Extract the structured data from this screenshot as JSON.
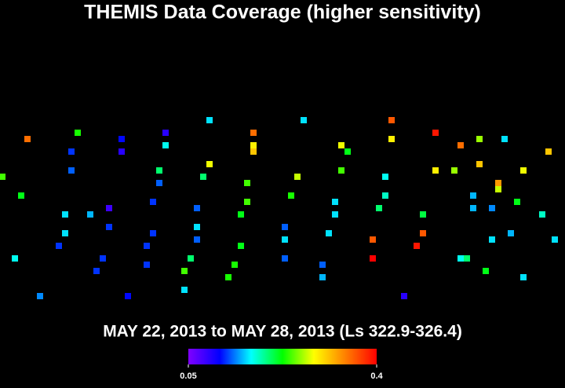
{
  "chart_data": {
    "type": "scatter",
    "title": "THEMIS Data Coverage (higher sensitivity)",
    "subtitle": "MAY 22, 2013 to MAY 28, 2013 (Ls 322.9-326.4)",
    "xlim": [
      0,
      720
    ],
    "ylim": [
      494,
      0
    ],
    "x": [
      267,
      387,
      499,
      555,
      211,
      99,
      35,
      155,
      323,
      499,
      611,
      643,
      323,
      323,
      211,
      435,
      443,
      587,
      699,
      91,
      155,
      267,
      611,
      91,
      203,
      435,
      555,
      579,
      667,
      3,
      259,
      379,
      491,
      203,
      315,
      635,
      635,
      27,
      371,
      491,
      603,
      195,
      315,
      427,
      659,
      139,
      251,
      483,
      603,
      627,
      83,
      115,
      307,
      427,
      539,
      691,
      251,
      363,
      139,
      83,
      195,
      419,
      539,
      651,
      251,
      363,
      475,
      627,
      707,
      75,
      187,
      307,
      531,
      19,
      131,
      243,
      363,
      475,
      587,
      595,
      187,
      299,
      411,
      123,
      235,
      619,
      291,
      411,
      667,
      235,
      51,
      163,
      515
    ],
    "y": [
      153,
      153,
      153,
      169,
      169,
      169,
      177,
      177,
      169,
      177,
      177,
      177,
      185,
      193,
      185,
      185,
      193,
      185,
      193,
      193,
      193,
      209,
      209,
      217,
      217,
      217,
      217,
      217,
      217,
      225,
      225,
      225,
      225,
      233,
      233,
      233,
      241,
      249,
      249,
      249,
      249,
      257,
      257,
      257,
      257,
      265,
      265,
      265,
      265,
      265,
      273,
      273,
      273,
      273,
      273,
      273,
      289,
      289,
      289,
      297,
      297,
      297,
      297,
      297,
      305,
      305,
      305,
      305,
      305,
      313,
      313,
      313,
      313,
      329,
      329,
      329,
      329,
      329,
      329,
      329,
      337,
      337,
      337,
      345,
      345,
      345,
      353,
      353,
      353,
      369,
      377,
      377,
      377
    ],
    "values": [
      0.16,
      0.16,
      0.36,
      0.39,
      0.09,
      0.23,
      0.35,
      0.11,
      0.35,
      0.29,
      0.26,
      0.16,
      0.29,
      0.31,
      0.17,
      0.28,
      0.22,
      0.35,
      0.31,
      0.12,
      0.09,
      0.28,
      0.31,
      0.13,
      0.2,
      0.24,
      0.29,
      0.26,
      0.28,
      0.24,
      0.2,
      0.27,
      0.17,
      0.13,
      0.24,
      0.33,
      0.27,
      0.22,
      0.23,
      0.18,
      0.15,
      0.12,
      0.24,
      0.16,
      0.22,
      0.08,
      0.13,
      0.2,
      0.15,
      0.14,
      0.16,
      0.15,
      0.22,
      0.16,
      0.21,
      0.18,
      0.16,
      0.13,
      0.12,
      0.16,
      0.12,
      0.16,
      0.36,
      0.15,
      0.13,
      0.16,
      0.36,
      0.16,
      0.16,
      0.12,
      0.12,
      0.22,
      0.39,
      0.17,
      0.12,
      0.2,
      0.13,
      0.4,
      0.17,
      0.2,
      0.12,
      0.23,
      0.13,
      0.12,
      0.24,
      0.22,
      0.23,
      0.15,
      0.16,
      0.16,
      0.14,
      0.11,
      0.09
    ],
    "colormap": [
      "#8000ff",
      "#0000ff",
      "#00ffff",
      "#00ff00",
      "#ffff00",
      "#ff8000",
      "#ff0000"
    ],
    "clim": [
      0.05,
      0.4
    ],
    "cticks": [
      0.05,
      0.4
    ]
  }
}
